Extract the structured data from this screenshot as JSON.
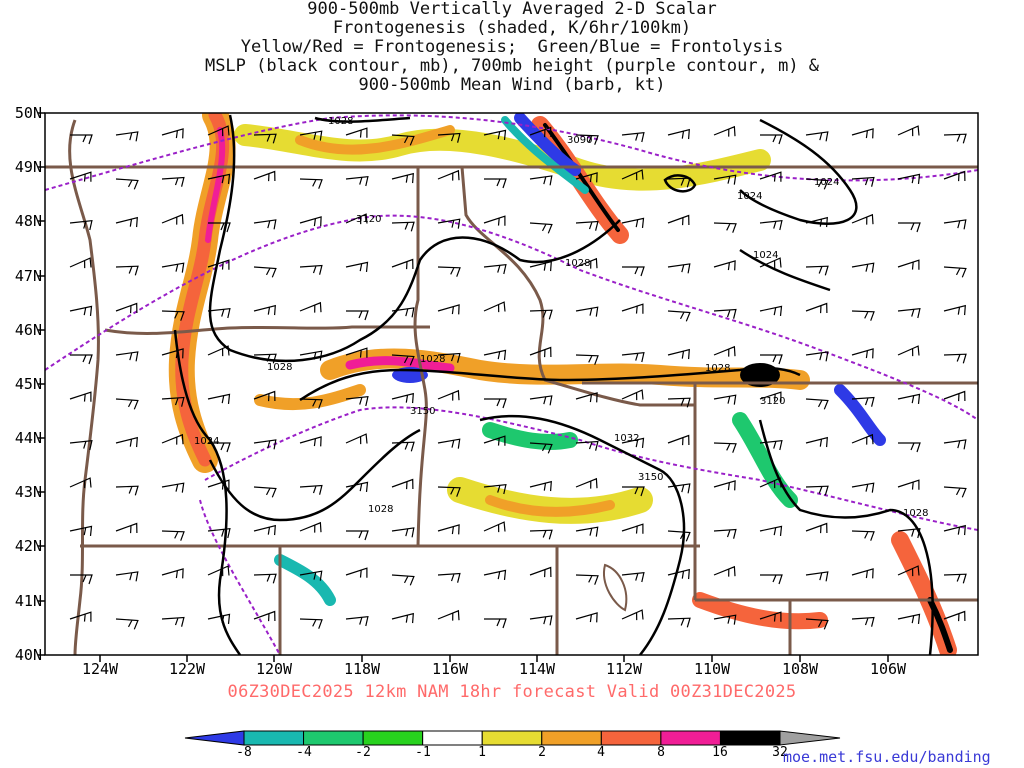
{
  "title_lines": [
    "900-500mb Vertically Averaged 2-D Scalar",
    "Frontogenesis (shaded, K/6hr/100km)",
    "Yellow/Red = Frontogenesis;  Green/Blue = Frontolysis",
    "MSLP (black contour, mb), 700mb height (purple contour, m) &",
    "900-500mb Mean Wind (barb, kt)"
  ],
  "lat_labels": [
    "50N",
    "49N",
    "48N",
    "47N",
    "46N",
    "45N",
    "44N",
    "43N",
    "42N",
    "41N",
    "40N"
  ],
  "lon_labels": [
    "124W",
    "122W",
    "120W",
    "118W",
    "116W",
    "114W",
    "112W",
    "110W",
    "108W",
    "106W"
  ],
  "contour_labels": {
    "mslp": [
      "1028",
      "1028",
      "1028",
      "1028",
      "1028",
      "1028",
      "1024",
      "1024",
      "1024",
      "1032"
    ],
    "height": [
      "3090",
      "3120",
      "3150",
      "3150",
      "3120"
    ]
  },
  "valid_text": "06Z30DEC2025 12km NAM 18hr forecast Valid 00Z31DEC2025",
  "colorbar": {
    "labels": [
      "-8",
      "-4",
      "-2",
      "-1",
      "1",
      "2",
      "4",
      "8",
      "16",
      "32"
    ],
    "colors": [
      "#2e3ae6",
      "#19b8b0",
      "#1ec86e",
      "#28d21e",
      "#ffffff",
      "#e6dc32",
      "#f0a028",
      "#f5643c",
      "#f01e96",
      "#000000",
      "#a0a0a0"
    ]
  },
  "credit": "moe.met.fsu.edu/banding",
  "colors": {
    "state_lines": "#7a5a4a",
    "mslp_contour": "#000000",
    "height_contour": "#9a20c8",
    "valid_text": "#ff6a6a",
    "credit_text": "#3a3ad6"
  }
}
